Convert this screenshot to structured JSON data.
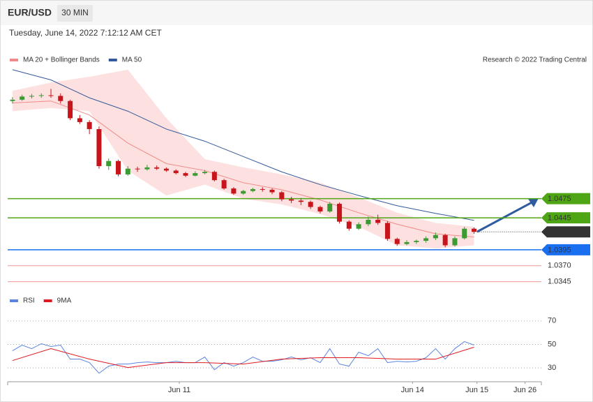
{
  "header": {
    "symbol": "EUR/USD",
    "timeframe": "30 MIN",
    "timestamp": "Tuesday, June 14, 2022 7:12:12 AM CET"
  },
  "chart_data": [
    {
      "type": "candlestick",
      "credit": "Research © 2022 Trading Central",
      "up_color": "#3c9a32",
      "down_color": "#c8151b",
      "xlim": [
        -0.5,
        55
      ],
      "ylim": [
        1.0338,
        1.069
      ],
      "ohlc": [
        [
          1.0628,
          1.0634,
          1.0624,
          1.063
        ],
        [
          1.063,
          1.0638,
          1.0628,
          1.0635
        ],
        [
          1.0635,
          1.0639,
          1.0632,
          1.0636
        ],
        [
          1.0636,
          1.064,
          1.0633,
          1.0637
        ],
        [
          1.0637,
          1.0647,
          1.0633,
          1.0636
        ],
        [
          1.0636,
          1.064,
          1.0624,
          1.0628
        ],
        [
          1.0628,
          1.063,
          1.0598,
          1.0601
        ],
        [
          1.0601,
          1.0606,
          1.0592,
          1.0595
        ],
        [
          1.0595,
          1.0598,
          1.0576,
          1.0584
        ],
        [
          1.0584,
          1.0588,
          1.0522,
          1.0526
        ],
        [
          1.0526,
          1.0538,
          1.052,
          1.0534
        ],
        [
          1.0534,
          1.0536,
          1.051,
          1.0513
        ],
        [
          1.0513,
          1.0526,
          1.0511,
          1.0522
        ],
        [
          1.0522,
          1.0525,
          1.0517,
          1.0521
        ],
        [
          1.0521,
          1.0528,
          1.0519,
          1.0524
        ],
        [
          1.0524,
          1.0527,
          1.052,
          1.0522
        ],
        [
          1.0522,
          1.0524,
          1.0517,
          1.0519
        ],
        [
          1.0519,
          1.0521,
          1.0513,
          1.0515
        ],
        [
          1.0515,
          1.0517,
          1.0509,
          1.0511
        ],
        [
          1.0511,
          1.0518,
          1.051,
          1.0515
        ],
        [
          1.0515,
          1.052,
          1.0513,
          1.0517
        ],
        [
          1.0517,
          1.0519,
          1.0502,
          1.0504
        ],
        [
          1.0504,
          1.0506,
          1.0489,
          1.0491
        ],
        [
          1.0491,
          1.0493,
          1.0481,
          1.0483
        ],
        [
          1.0483,
          1.0489,
          1.0481,
          1.0487
        ],
        [
          1.0487,
          1.0492,
          1.0485,
          1.049
        ],
        [
          1.049,
          1.0493,
          1.0486,
          1.0489
        ],
        [
          1.0489,
          1.0491,
          1.0482,
          1.0485
        ],
        [
          1.0485,
          1.0487,
          1.0471,
          1.0474
        ],
        [
          1.0474,
          1.0478,
          1.0468,
          1.0472
        ],
        [
          1.0472,
          1.0476,
          1.0465,
          1.047
        ],
        [
          1.047,
          1.0472,
          1.0459,
          1.0462
        ],
        [
          1.0462,
          1.0464,
          1.0452,
          1.0455
        ],
        [
          1.0455,
          1.047,
          1.0453,
          1.0467
        ],
        [
          1.0467,
          1.0469,
          1.0436,
          1.0439
        ],
        [
          1.0439,
          1.0441,
          1.0425,
          1.0428
        ],
        [
          1.0428,
          1.0438,
          1.0426,
          1.0435
        ],
        [
          1.0435,
          1.0447,
          1.0432,
          1.0442
        ],
        [
          1.0442,
          1.045,
          1.0434,
          1.0437
        ],
        [
          1.0437,
          1.044,
          1.0409,
          1.0412
        ],
        [
          1.0412,
          1.0414,
          1.0401,
          1.0404
        ],
        [
          1.0404,
          1.041,
          1.0402,
          1.0407
        ],
        [
          1.0407,
          1.0411,
          1.0404,
          1.0409
        ],
        [
          1.0409,
          1.0416,
          1.0406,
          1.0413
        ],
        [
          1.0413,
          1.0422,
          1.041,
          1.0418
        ],
        [
          1.0418,
          1.042,
          1.0399,
          1.0402
        ],
        [
          1.0402,
          1.0416,
          1.04,
          1.0413
        ],
        [
          1.0413,
          1.0431,
          1.0411,
          1.0428
        ],
        [
          1.0428,
          1.043,
          1.042,
          1.0423
        ]
      ],
      "series": [
        {
          "name": "MA 20 + Bollinger Bands",
          "color": "#f08a8a",
          "band_color": "#fde0e0",
          "x": [
            0,
            4,
            8,
            12,
            16,
            20,
            24,
            28,
            32,
            36,
            40,
            44,
            48
          ],
          "values": [
            1.0625,
            1.0628,
            1.0606,
            1.0562,
            1.053,
            1.0519,
            1.05,
            1.0489,
            1.0473,
            1.0453,
            1.0435,
            1.042,
            1.0415
          ],
          "upper": [
            1.0644,
            1.0657,
            1.0666,
            1.0677,
            1.0601,
            1.0537,
            1.0524,
            1.0513,
            1.05,
            1.0477,
            1.0453,
            1.0437,
            1.0431
          ],
          "lower": [
            1.0612,
            1.0617,
            1.0612,
            1.0519,
            1.048,
            1.0497,
            1.0475,
            1.0466,
            1.0451,
            1.0431,
            1.0402,
            1.0397,
            1.0402
          ]
        },
        {
          "name": "MA 50",
          "color": "#34599a",
          "x": [
            0,
            4,
            8,
            12,
            16,
            20,
            24,
            28,
            32,
            36,
            40,
            44,
            48
          ],
          "values": [
            1.0677,
            1.0661,
            1.0633,
            1.0612,
            1.0584,
            1.0565,
            1.0541,
            1.0517,
            1.0497,
            1.048,
            1.0464,
            1.0452,
            1.0441
          ]
        }
      ],
      "levels": [
        {
          "value": 1.0475,
          "color": "#4fa614",
          "kind": "box",
          "line": "solid"
        },
        {
          "value": 1.0445,
          "color": "#4fa614",
          "kind": "box",
          "line": "solid"
        },
        {
          "value": 1.0423,
          "color": "#333333",
          "kind": "box",
          "line": "dotted"
        },
        {
          "value": 1.0395,
          "color": "#1a6ef0",
          "kind": "box",
          "line": "solid"
        },
        {
          "value": 1.037,
          "label": "1.0370",
          "color": "#e8151b",
          "kind": "text",
          "line": "solid"
        },
        {
          "value": 1.0345,
          "color": "#e8151b",
          "kind": "text",
          "line": "solid"
        }
      ]
    },
    {
      "type": "line",
      "xlim": [
        -0.5,
        55
      ],
      "ylim": [
        20,
        80
      ],
      "yticks": [
        30,
        50,
        70
      ],
      "xticks": [
        {
          "value": 17.35,
          "label": "Jun 11"
        },
        {
          "value": 41.6,
          "label": "Jun 14"
        },
        {
          "value": 48.3,
          "label": "Jun 15"
        },
        {
          "value": 53.3,
          "label": "Jun 26"
        }
      ],
      "series": [
        {
          "name": "RSI",
          "color": "#5b84e0",
          "x": [
            0,
            1,
            2,
            3,
            4,
            5,
            6,
            7,
            8,
            9,
            10,
            11,
            12,
            13,
            14,
            15,
            16,
            17,
            18,
            19,
            20,
            21,
            22,
            23,
            24,
            25,
            26,
            27,
            28,
            29,
            30,
            31,
            32,
            33,
            34,
            35,
            36,
            37,
            38,
            39,
            40,
            41,
            42,
            43,
            44,
            45,
            46,
            47,
            48
          ],
          "values": [
            44.6,
            49.4,
            46.4,
            50.6,
            48.2,
            49.4,
            37.5,
            37.5,
            34.5,
            25.5,
            31.5,
            33.3,
            33.3,
            34.5,
            35.1,
            34.5,
            34.5,
            35.7,
            34.5,
            34.5,
            39.3,
            28.5,
            34.5,
            31.5,
            34.5,
            39.3,
            35.7,
            35.7,
            36.9,
            39.3,
            36.9,
            38.7,
            34.5,
            46.4,
            33.3,
            31.5,
            43.4,
            40.4,
            46.4,
            34.5,
            35.7,
            35.1,
            35.7,
            38.7,
            46.4,
            37.5,
            46.4,
            52.4,
            49.4
          ]
        },
        {
          "name": "9MA",
          "color": "#e0191f",
          "x": [
            0,
            4,
            8,
            12,
            16,
            20,
            24,
            28,
            32,
            36,
            40,
            44,
            48
          ],
          "values": [
            36.3,
            46.4,
            37.5,
            30.3,
            34.5,
            34.5,
            33.3,
            37.5,
            38.7,
            38.7,
            37.5,
            37.5,
            47.6
          ]
        }
      ]
    }
  ]
}
